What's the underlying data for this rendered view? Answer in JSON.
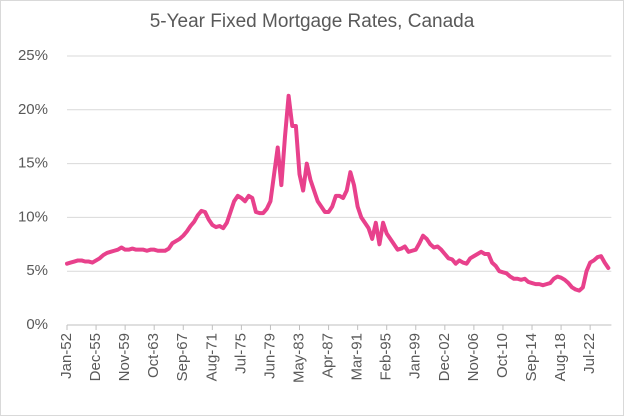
{
  "chart_data": {
    "type": "line",
    "title": "5-Year Fixed Mortgage Rates, Canada",
    "categories": [
      "Jan-52",
      null,
      null,
      null,
      null,
      null,
      null,
      null,
      "Dec-55",
      null,
      null,
      null,
      null,
      null,
      null,
      null,
      "Nov-59",
      null,
      null,
      null,
      null,
      null,
      null,
      null,
      "Oct-63",
      null,
      null,
      null,
      null,
      null,
      null,
      null,
      "Sep-67",
      null,
      null,
      null,
      null,
      null,
      null,
      null,
      "Aug-71",
      null,
      null,
      null,
      null,
      null,
      null,
      null,
      "Jul-75",
      null,
      null,
      null,
      null,
      null,
      null,
      null,
      "Jun-79",
      null,
      null,
      null,
      null,
      null,
      null,
      null,
      "May-83",
      null,
      null,
      null,
      null,
      null,
      null,
      null,
      "Apr-87",
      null,
      null,
      null,
      null,
      null,
      null,
      null,
      "Mar-91",
      null,
      null,
      null,
      null,
      null,
      null,
      null,
      "Feb-95",
      null,
      null,
      null,
      null,
      null,
      null,
      null,
      "Jan-99",
      null,
      null,
      null,
      null,
      null,
      null,
      null,
      "Dec-02",
      null,
      null,
      null,
      null,
      null,
      null,
      null,
      "Nov-06",
      null,
      null,
      null,
      null,
      null,
      null,
      null,
      "Oct-10",
      null,
      null,
      null,
      null,
      null,
      null,
      null,
      "Sep-14",
      null,
      null,
      null,
      null,
      null,
      null,
      null,
      "Aug-18",
      null,
      null,
      null,
      null,
      null,
      null,
      null,
      "Jul-22",
      null,
      null,
      null,
      null,
      null
    ],
    "values": [
      5.7,
      5.8,
      5.9,
      6.0,
      6.0,
      5.9,
      5.9,
      5.8,
      6.0,
      6.2,
      6.5,
      6.7,
      6.8,
      6.9,
      7.0,
      7.2,
      7.0,
      7.0,
      7.1,
      7.0,
      7.0,
      7.0,
      6.9,
      7.0,
      7.0,
      6.9,
      6.9,
      6.9,
      7.1,
      7.6,
      7.8,
      8.0,
      8.3,
      8.7,
      9.2,
      9.6,
      10.2,
      10.6,
      10.5,
      9.8,
      9.3,
      9.1,
      9.2,
      9.0,
      9.5,
      10.5,
      11.5,
      12.0,
      11.8,
      11.5,
      12.0,
      11.8,
      10.5,
      10.4,
      10.4,
      10.8,
      11.5,
      14.0,
      16.5,
      13.0,
      17.5,
      21.3,
      18.5,
      18.5,
      14.0,
      12.5,
      15.0,
      13.5,
      12.5,
      11.5,
      11.0,
      10.5,
      10.5,
      11.0,
      12.0,
      12.0,
      11.8,
      12.5,
      14.2,
      13.0,
      11.0,
      10.0,
      9.5,
      9.0,
      8.0,
      9.5,
      7.5,
      9.5,
      8.5,
      8.0,
      7.5,
      7.0,
      7.1,
      7.3,
      6.8,
      6.9,
      7.0,
      7.6,
      8.3,
      8.0,
      7.5,
      7.2,
      7.3,
      7.0,
      6.6,
      6.2,
      6.1,
      5.7,
      6.0,
      5.8,
      5.7,
      6.2,
      6.4,
      6.6,
      6.8,
      6.6,
      6.6,
      5.8,
      5.5,
      5.0,
      4.9,
      4.8,
      4.5,
      4.3,
      4.3,
      4.2,
      4.3,
      4.0,
      3.9,
      3.8,
      3.8,
      3.7,
      3.8,
      3.9,
      4.3,
      4.5,
      4.4,
      4.2,
      3.9,
      3.5,
      3.3,
      3.2,
      3.5,
      5.0,
      5.8,
      6.0,
      6.3,
      6.4,
      5.8,
      5.3
    ],
    "color": "#e8418c",
    "ylim": [
      0,
      25
    ],
    "yticks": [
      {
        "value": 0,
        "label": "0%"
      },
      {
        "value": 5,
        "label": "5%"
      },
      {
        "value": 10,
        "label": "10%"
      },
      {
        "value": 15,
        "label": "15%"
      },
      {
        "value": 20,
        "label": "20%"
      },
      {
        "value": 25,
        "label": "25%"
      }
    ],
    "grid": true
  }
}
